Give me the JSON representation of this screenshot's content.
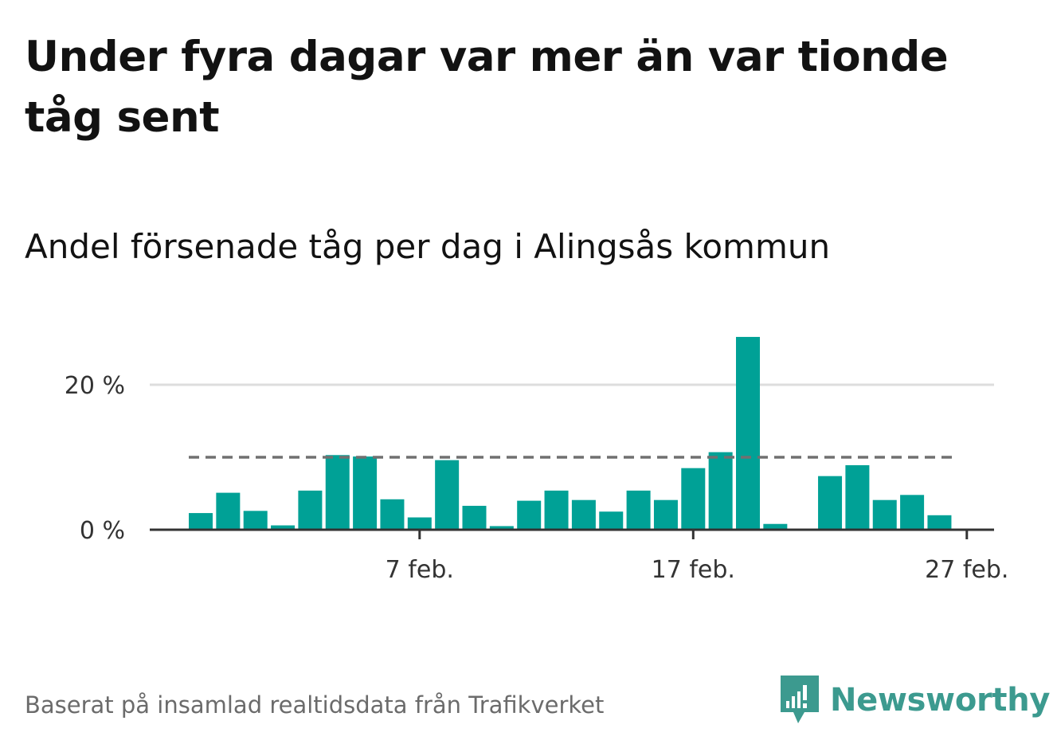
{
  "title": "Under fyra dagar var mer än var tionde tåg sent",
  "subtitle": "Andel försenade tåg per dag i Alingsås kommun",
  "source": "Baserat på insamlad realtidsdata från Trafikverket",
  "brand": {
    "name": "Newsworthy",
    "icon": "newsworthy-logo-icon",
    "color": "#3c9a8f"
  },
  "colors": {
    "bar": "#00a196",
    "reference": "#707070",
    "grid": "#dddddd",
    "axis": "#333333"
  },
  "chart_data": {
    "type": "bar",
    "title": "Under fyra dagar var mer än var tionde tåg sent",
    "subtitle": "Andel försenade tåg per dag i Alingsås kommun",
    "xlabel": "",
    "ylabel": "",
    "ylim": [
      0,
      28
    ],
    "yticks": [
      0,
      20
    ],
    "ytick_labels": [
      "0 %",
      "20 %"
    ],
    "xtick_labels": [
      "7 feb.",
      "17 feb.",
      "27 feb."
    ],
    "xticks": [
      "2020-02-07",
      "2020-02-17",
      "2020-02-27"
    ],
    "x": [
      "2020-01-30",
      "2020-01-31",
      "2020-02-01",
      "2020-02-02",
      "2020-02-03",
      "2020-02-04",
      "2020-02-05",
      "2020-02-06",
      "2020-02-07",
      "2020-02-08",
      "2020-02-09",
      "2020-02-10",
      "2020-02-11",
      "2020-02-12",
      "2020-02-13",
      "2020-02-14",
      "2020-02-15",
      "2020-02-16",
      "2020-02-17",
      "2020-02-18",
      "2020-02-19",
      "2020-02-20",
      "2020-02-21",
      "2020-02-22",
      "2020-02-23",
      "2020-02-24",
      "2020-02-25",
      "2020-02-26",
      "2020-02-27",
      "2020-02-28"
    ],
    "values": [
      2.3,
      5.1,
      2.6,
      0.6,
      5.4,
      10.3,
      10.1,
      4.2,
      1.7,
      9.6,
      3.3,
      0.5,
      4.0,
      5.4,
      4.1,
      2.5,
      5.4,
      4.1,
      8.5,
      10.7,
      26.6,
      0.8,
      null,
      7.4,
      8.9,
      4.1,
      4.8,
      2.0,
      null,
      null
    ],
    "reference_line": 10,
    "grid": true,
    "legend": "none"
  }
}
